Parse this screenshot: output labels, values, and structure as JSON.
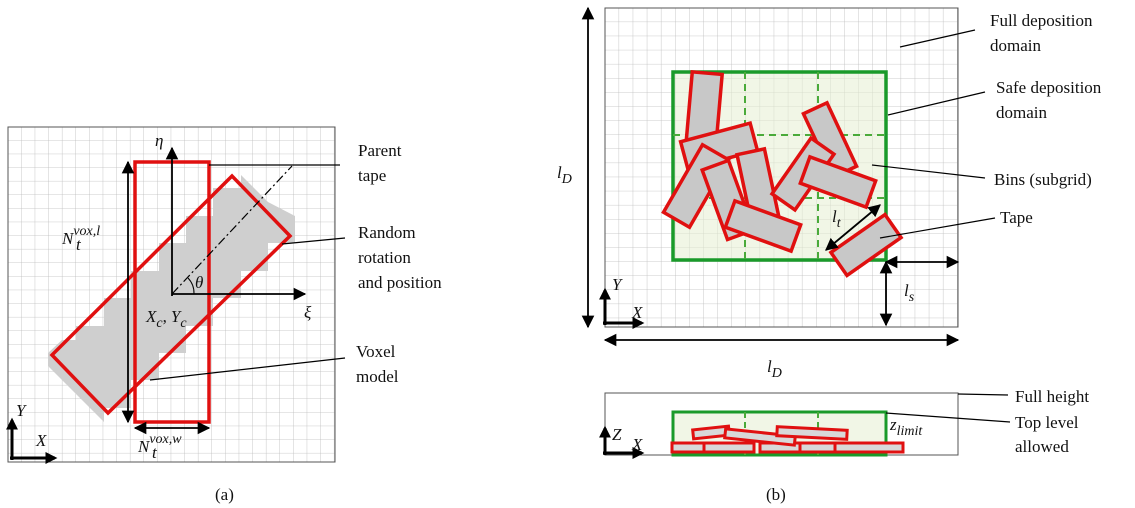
{
  "panel_a": {
    "caption": "(a)",
    "axis_eta": "η",
    "axis_xi": "ξ",
    "angle": "θ",
    "center": {
      "x": "X",
      "x_sub": "c",
      "sep": ",",
      "y": "Y",
      "y_sub": "c"
    },
    "length": {
      "base": "N",
      "sub": "t",
      "sup": "vox,l"
    },
    "width": {
      "base": "N",
      "sub": "t",
      "sup": "vox,w"
    },
    "parent_tape": [
      "Parent",
      "tape"
    ],
    "random": [
      "Random",
      "rotation",
      "and position"
    ],
    "voxel": [
      "Voxel",
      "model"
    ],
    "axis_y": "Y",
    "axis_x": "X"
  },
  "panel_b": {
    "caption": "(b)",
    "full_domain": [
      "Full deposition",
      "domain"
    ],
    "safe_domain": [
      "Safe deposition",
      "domain"
    ],
    "bins": [
      "Bins (subgrid)"
    ],
    "tape": [
      "Tape"
    ],
    "domain_height": {
      "base": "l",
      "sub": "D"
    },
    "domain_width": {
      "base": "l",
      "sub": "D"
    },
    "tape_width": {
      "base": "l",
      "sub": "t"
    },
    "safe_margin": {
      "base": "l",
      "sub": "s"
    },
    "axis_y": "Y",
    "axis_x": "X",
    "side": {
      "axis_z": "Z",
      "axis_x": "X",
      "z_limit": {
        "base": "z",
        "sub": "limit"
      },
      "full_height": [
        "Full height"
      ],
      "top_level": [
        "Top level",
        "allowed"
      ]
    }
  }
}
